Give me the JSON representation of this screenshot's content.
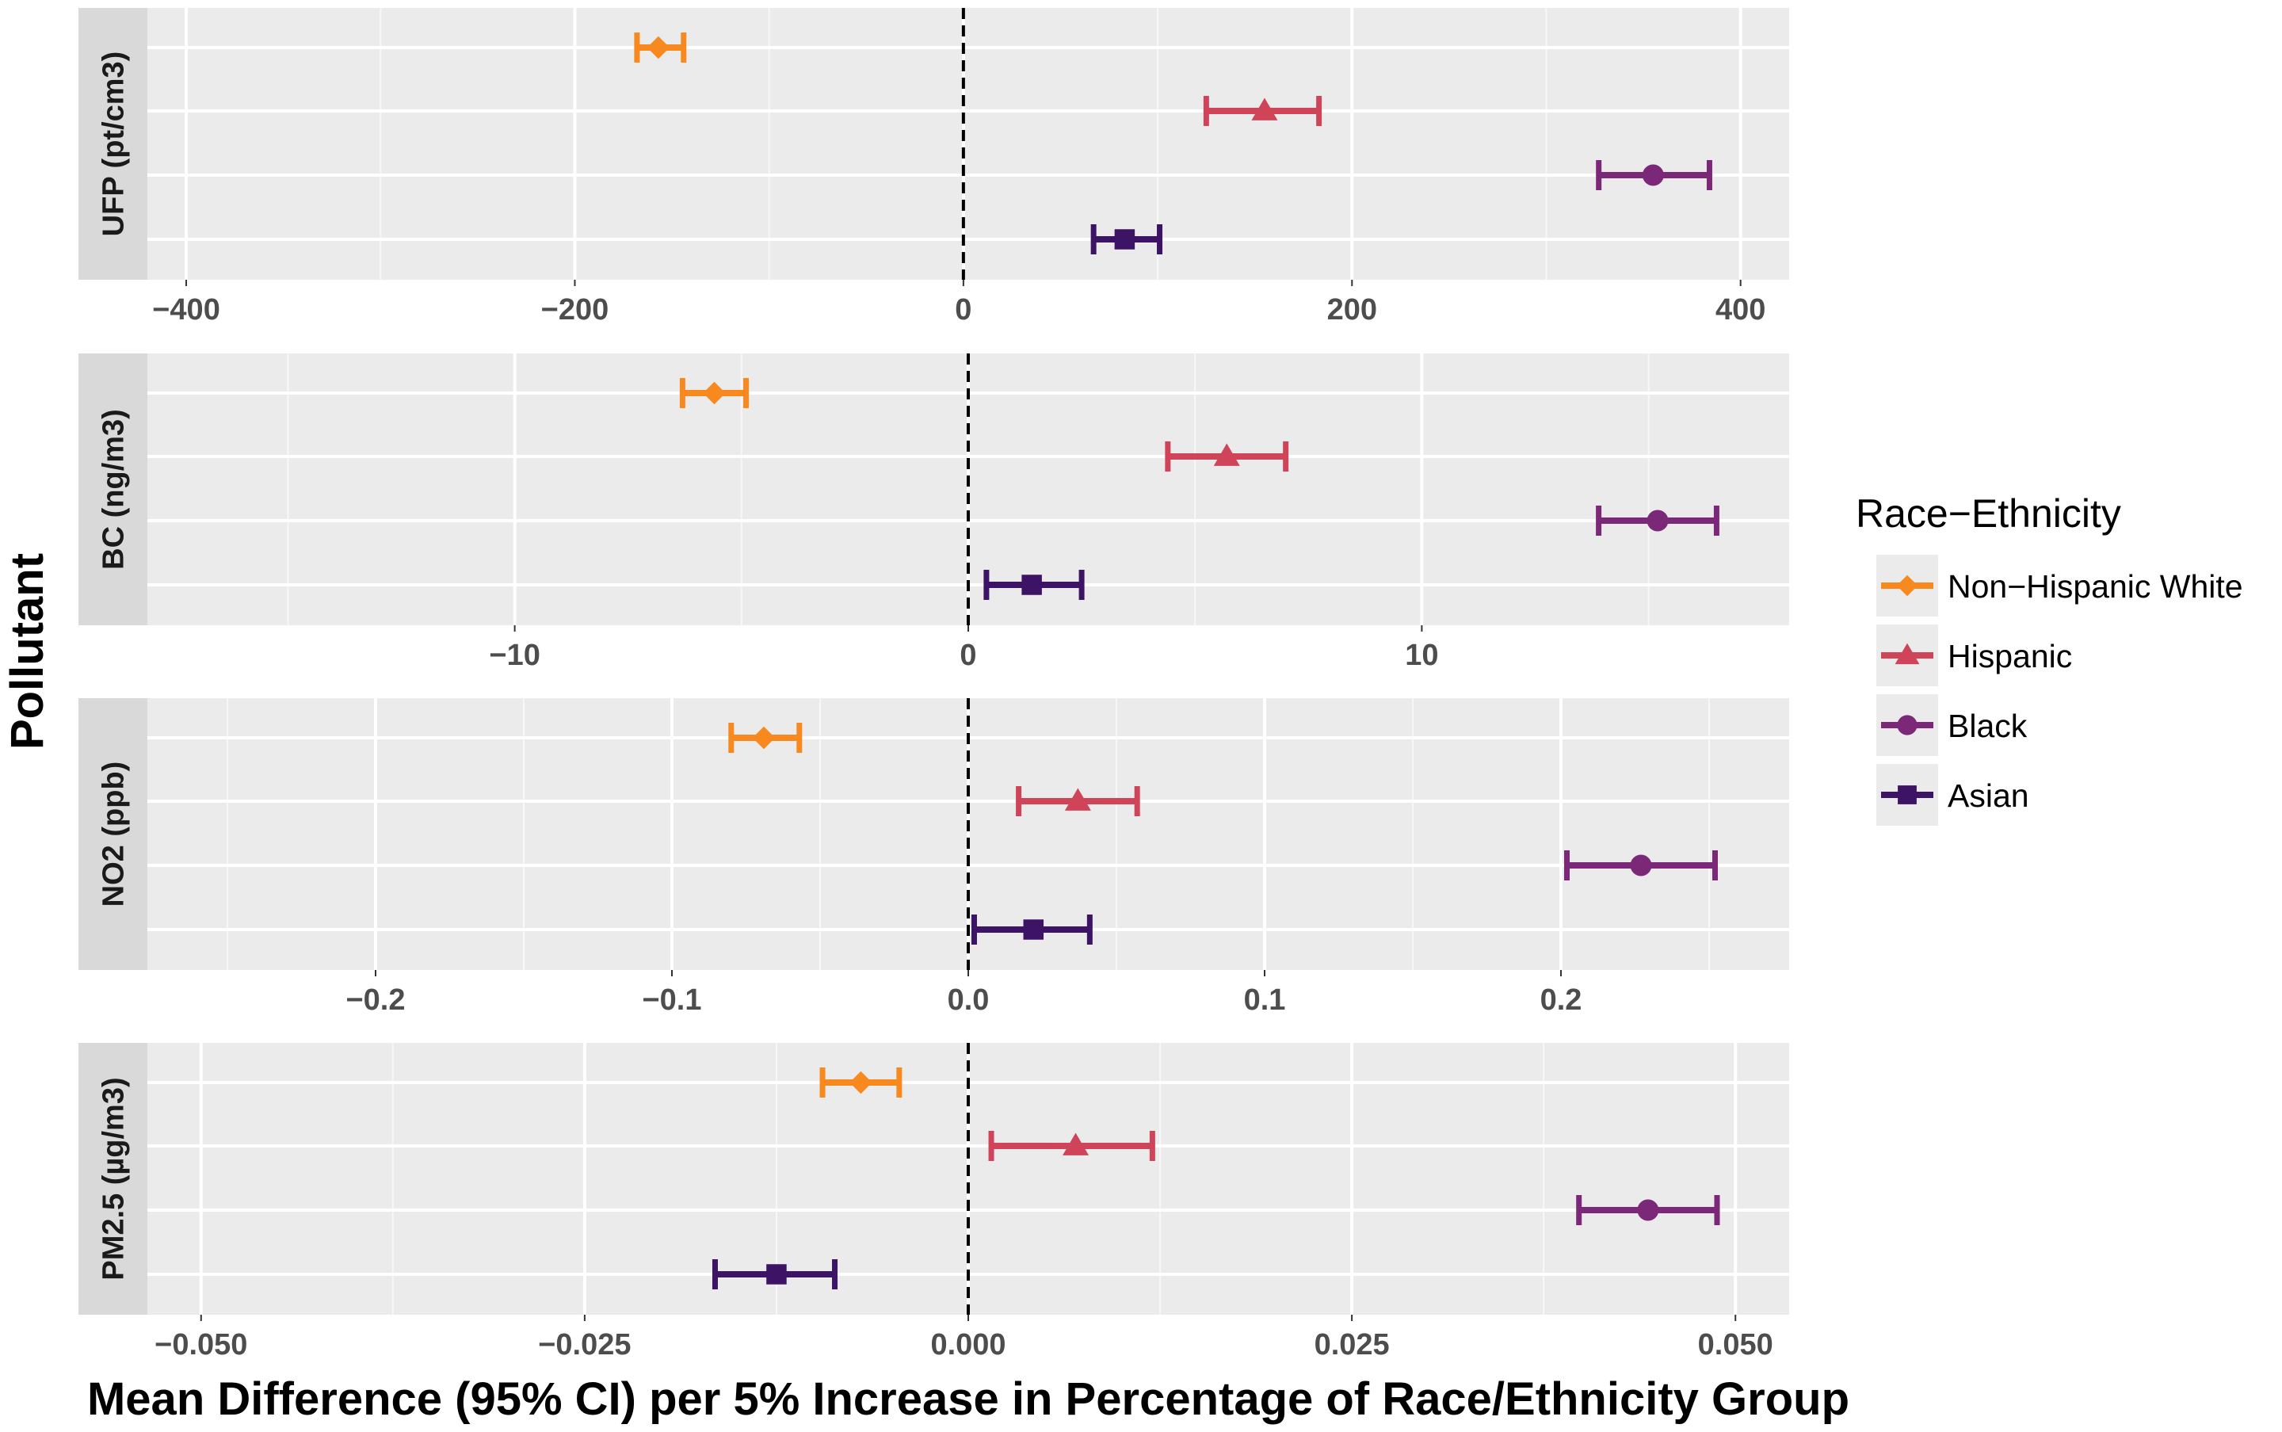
{
  "chart_data": {
    "type": "forest-plot",
    "title": "",
    "xlabel": "Mean Difference (95% CI) per 5% Increase in Percentage of Race/Ethnicity Group",
    "ylabel": "Pollutant",
    "reference_line": 0,
    "legend": {
      "title": "Race−Ethnicity",
      "position": "right",
      "items": [
        {
          "name": "Non−Hispanic White",
          "color": "#f7891f",
          "shape": "diamond"
        },
        {
          "name": "Hispanic",
          "color": "#cf4459",
          "shape": "triangle"
        },
        {
          "name": "Black",
          "color": "#7b2878",
          "shape": "circle"
        },
        {
          "name": "Asian",
          "color": "#3d1366",
          "shape": "square"
        }
      ]
    },
    "panels": [
      {
        "label": "UFP (pt/cm3)",
        "xlim": [
          -420,
          425
        ],
        "major_ticks": [
          -400,
          -200,
          0,
          200,
          400
        ],
        "tick_labels": [
          "−400",
          "−200",
          "0",
          "200",
          "400"
        ],
        "minor_ticks": [
          -300,
          -100,
          100,
          300
        ],
        "series": [
          {
            "name": "Non−Hispanic White",
            "estimate": -157,
            "ci": [
              -168,
              -144
            ]
          },
          {
            "name": "Hispanic",
            "estimate": 155,
            "ci": [
              125,
              183
            ]
          },
          {
            "name": "Black",
            "estimate": 355,
            "ci": [
              327,
              384
            ]
          },
          {
            "name": "Asian",
            "estimate": 83,
            "ci": [
              67,
              101
            ]
          }
        ]
      },
      {
        "label": "BC (ng/m3)",
        "xlim": [
          -18.1,
          18.1
        ],
        "major_ticks": [
          -10,
          0,
          10
        ],
        "tick_labels": [
          "−10",
          "0",
          "10"
        ],
        "minor_ticks": [
          -15,
          -5,
          5,
          15
        ],
        "series": [
          {
            "name": "Non−Hispanic White",
            "estimate": -5.6,
            "ci": [
              -6.3,
              -4.9
            ]
          },
          {
            "name": "Hispanic",
            "estimate": 5.7,
            "ci": [
              4.4,
              7.0
            ]
          },
          {
            "name": "Black",
            "estimate": 15.2,
            "ci": [
              13.9,
              16.5
            ]
          },
          {
            "name": "Asian",
            "estimate": 1.4,
            "ci": [
              0.4,
              2.5
            ]
          }
        ]
      },
      {
        "label": "NO2 (ppb)",
        "xlim": [
          -0.277,
          0.277
        ],
        "major_ticks": [
          -0.2,
          -0.1,
          0.0,
          0.1,
          0.2
        ],
        "tick_labels": [
          "−0.2",
          "−0.1",
          "0.0",
          "0.1",
          "0.2"
        ],
        "minor_ticks": [
          -0.25,
          -0.15,
          -0.05,
          0.05,
          0.15,
          0.25
        ],
        "series": [
          {
            "name": "Non−Hispanic White",
            "estimate": -0.069,
            "ci": [
              -0.08,
              -0.057
            ]
          },
          {
            "name": "Hispanic",
            "estimate": 0.037,
            "ci": [
              0.017,
              0.057
            ]
          },
          {
            "name": "Black",
            "estimate": 0.227,
            "ci": [
              0.202,
              0.252
            ]
          },
          {
            "name": "Asian",
            "estimate": 0.022,
            "ci": [
              0.002,
              0.041
            ]
          }
        ]
      },
      {
        "label": "PM2.5 (µg/m3)",
        "xlim": [
          -0.0535,
          0.0535
        ],
        "major_ticks": [
          -0.05,
          -0.025,
          0.0,
          0.025,
          0.05
        ],
        "tick_labels": [
          "−0.050",
          "−0.025",
          "0.000",
          "0.025",
          "0.050"
        ],
        "minor_ticks": [
          -0.0375,
          -0.0125,
          0.0125,
          0.0375
        ],
        "series": [
          {
            "name": "Non−Hispanic White",
            "estimate": -0.007,
            "ci": [
              -0.0095,
              -0.0045
            ]
          },
          {
            "name": "Hispanic",
            "estimate": 0.007,
            "ci": [
              0.0015,
              0.012
            ]
          },
          {
            "name": "Black",
            "estimate": 0.0443,
            "ci": [
              0.0398,
              0.0488
            ]
          },
          {
            "name": "Asian",
            "estimate": -0.0125,
            "ci": [
              -0.0165,
              -0.0087
            ]
          }
        ]
      }
    ]
  }
}
